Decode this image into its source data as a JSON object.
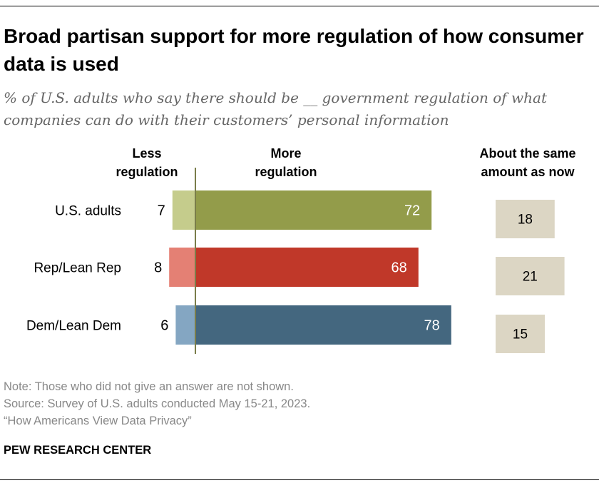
{
  "title": "Broad partisan support for more regulation of how consumer data is used",
  "subtitle": "% of U.S. adults who say there should be __ government regulation of what companies can do with their customers’ personal information",
  "chart_data": {
    "type": "bar",
    "orientation": "horizontal",
    "categories": [
      "U.S. adults",
      "Rep/Lean Rep",
      "Dem/Lean Dem"
    ],
    "series": [
      {
        "name": "Less regulation",
        "values": [
          7,
          8,
          6
        ],
        "colors": [
          "#c5cc8c",
          "#e48074",
          "#84a6c2"
        ]
      },
      {
        "name": "More regulation",
        "values": [
          72,
          68,
          78
        ],
        "colors": [
          "#939c4a",
          "#c03829",
          "#44677f"
        ]
      },
      {
        "name": "About the same amount as now",
        "values": [
          18,
          21,
          15
        ],
        "colors": [
          "#dcd6c4",
          "#dcd6c4",
          "#dcd6c4"
        ]
      }
    ],
    "column_headers": {
      "less": [
        "Less",
        "regulation"
      ],
      "more": [
        "More",
        "regulation"
      ],
      "same": [
        "About the same",
        "amount as now"
      ]
    },
    "axis_color": "#7a7d4a",
    "grid": false
  },
  "notes": {
    "note": "Note: Those who did not give an answer are not shown.",
    "source": "Source: Survey of U.S. adults conducted May 15-21, 2023.",
    "report": "“How Americans View Data Privacy”"
  },
  "brand": "PEW RESEARCH CENTER"
}
